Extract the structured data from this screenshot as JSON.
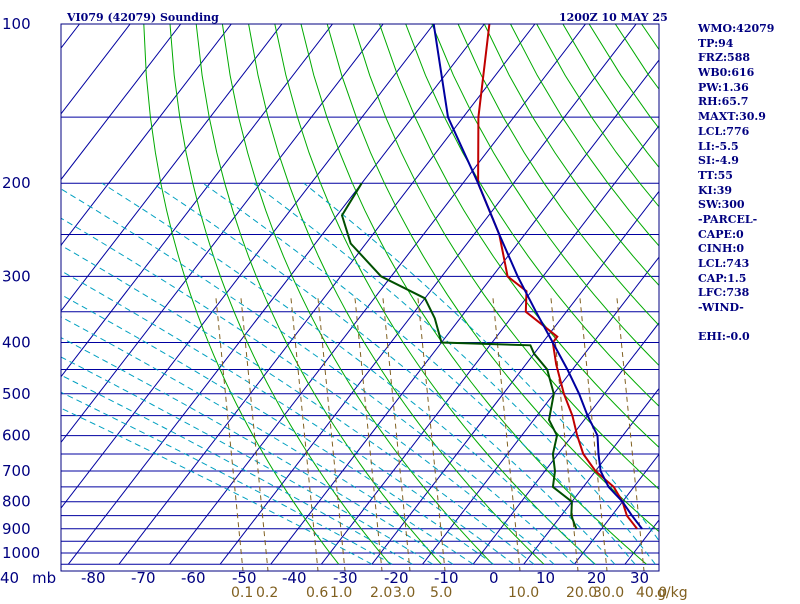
{
  "header": {
    "title": "VI079 (42079) Sounding",
    "time": "1200Z 10 MAY 25"
  },
  "indices": [
    "WMO:42079",
    "TP:94",
    "FRZ:588",
    "WB0:616",
    "PW:1.36",
    "RH:65.7",
    "MAXT:30.9",
    "LCL:776",
    "LI:-5.5",
    "SI:-4.9",
    "TT:55",
    "KI:39",
    "SW:300",
    "-PARCEL-",
    "CAPE:0",
    "CINH:0",
    "LCL:743",
    "CAP:1.5",
    "LFC:738",
    "-WIND-",
    "",
    "EHI:-0.0"
  ],
  "colors": {
    "frame": "#000080",
    "isobar": "#0000a0",
    "isotherm": "#0000a0",
    "dry_adiabat": "#00aa00",
    "moist_adiabat": "#00a0c0",
    "mixing_ratio": "#806020",
    "temperature": "#c00000",
    "dewpoint": "#005000",
    "parcel": "#0000a0",
    "axis_text": "#000080",
    "mixing_text": "#806020"
  },
  "chart_data": {
    "type": "line",
    "title": "VI079 (42079) Sounding",
    "subtitle": "1200Z 10 MAY 25",
    "pressure_ticks": [
      100,
      200,
      300,
      400,
      500,
      600,
      700,
      800,
      900,
      1000
    ],
    "pressure_range": [
      100,
      1050
    ],
    "temperature_ticks": [
      "mb",
      "-80",
      "-70",
      "-60",
      "-50",
      "-40",
      "-30",
      "-20",
      "-10",
      "0",
      "10",
      "20",
      "30",
      "40"
    ],
    "temperature_range": [
      -80,
      40
    ],
    "mixing_ratio_labels": [
      "0.1",
      "0.2",
      "0.6",
      "1.0",
      "2.0",
      "3.0",
      "5.0",
      "10.0",
      "20.0",
      "30.0",
      "40.0"
    ],
    "mixing_ratio_unit": "g/kg",
    "series": [
      {
        "key": "temperature",
        "points": [
          [
            100,
            -79
          ],
          [
            150,
            -67
          ],
          [
            200,
            -57
          ],
          [
            250,
            -45
          ],
          [
            300,
            -37
          ],
          [
            320,
            -31
          ],
          [
            350,
            -28
          ],
          [
            390,
            -18
          ],
          [
            400,
            -18
          ],
          [
            440,
            -14
          ],
          [
            500,
            -8
          ],
          [
            550,
            -3
          ],
          [
            600,
            1
          ],
          [
            650,
            5
          ],
          [
            700,
            10
          ],
          [
            750,
            16
          ],
          [
            800,
            20
          ],
          [
            850,
            23
          ],
          [
            900,
            27
          ]
        ]
      },
      {
        "key": "dewpoint",
        "points": [
          [
            200,
            -80
          ],
          [
            230,
            -79
          ],
          [
            260,
            -73
          ],
          [
            300,
            -62
          ],
          [
            330,
            -50
          ],
          [
            360,
            -45
          ],
          [
            400,
            -40
          ],
          [
            405,
            -22
          ],
          [
            420,
            -20
          ],
          [
            450,
            -15
          ],
          [
            500,
            -10
          ],
          [
            560,
            -7
          ],
          [
            600,
            -3
          ],
          [
            650,
            -1
          ],
          [
            700,
            2
          ],
          [
            750,
            4
          ],
          [
            800,
            10
          ],
          [
            850,
            12
          ],
          [
            900,
            15
          ]
        ]
      },
      {
        "key": "parcel",
        "points": [
          [
            100,
            -90
          ],
          [
            150,
            -73
          ],
          [
            200,
            -57
          ],
          [
            250,
            -45
          ],
          [
            300,
            -35
          ],
          [
            350,
            -26
          ],
          [
            400,
            -18
          ],
          [
            450,
            -11
          ],
          [
            500,
            -5
          ],
          [
            550,
            0
          ],
          [
            600,
            5
          ],
          [
            650,
            8
          ],
          [
            700,
            11
          ],
          [
            750,
            15
          ],
          [
            800,
            20
          ],
          [
            850,
            24
          ],
          [
            900,
            28
          ]
        ]
      }
    ]
  }
}
